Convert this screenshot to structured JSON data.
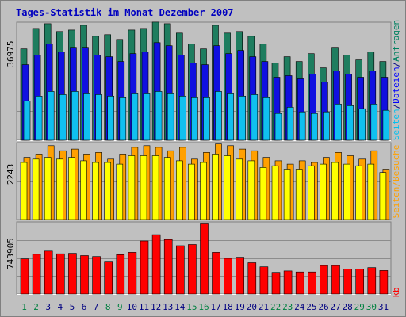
{
  "chart_data": {
    "type": "bar",
    "title": "Tages-Statistik im Monat Dezember 2007",
    "categories": [
      "1",
      "2",
      "3",
      "4",
      "5",
      "6",
      "7",
      "8",
      "9",
      "10",
      "11",
      "12",
      "13",
      "14",
      "15",
      "16",
      "17",
      "18",
      "19",
      "20",
      "21",
      "22",
      "23",
      "24",
      "25",
      "26",
      "27",
      "28",
      "29",
      "30",
      "31"
    ],
    "weekend_days": [
      "1",
      "2",
      "8",
      "9",
      "15",
      "16",
      "22",
      "23",
      "29",
      "30"
    ],
    "panels": [
      {
        "id": "requests",
        "ymax_label": "36975",
        "ymax": 36975,
        "grid": true,
        "series": [
          {
            "name": "Anfragen",
            "color": "#1e7d5f",
            "values": [
              29000,
              35500,
              37000,
              34500,
              35000,
              36500,
              33000,
              33500,
              32000,
              35000,
              35500,
              37500,
              37000,
              34000,
              30500,
              29000,
              36500,
              34000,
              34500,
              33000,
              30500,
              24500,
              26500,
              25000,
              27500,
              23000,
              29500,
              27000,
              25500,
              28000,
              25000
            ]
          },
          {
            "name": "Dateien",
            "color": "#1010e0",
            "values": [
              24000,
              27000,
              30500,
              28000,
              29500,
              29500,
              27000,
              26500,
              25000,
              27500,
              28000,
              31000,
              30000,
              27000,
              24500,
              24000,
              30000,
              27500,
              28500,
              26500,
              25000,
              20000,
              20500,
              19500,
              21000,
              18500,
              22000,
              21000,
              20000,
              22000,
              20000
            ]
          },
          {
            "name": "Seiten",
            "color": "#10c0f0",
            "values": [
              12500,
              14000,
              15500,
              14500,
              15500,
              15000,
              14500,
              14000,
              13500,
              15000,
              15000,
              15500,
              15000,
              14000,
              13500,
              13500,
              15500,
              15000,
              14000,
              14500,
              13500,
              8500,
              10500,
              9000,
              8500,
              9000,
              11500,
              11000,
              10000,
              11500,
              9500
            ]
          }
        ]
      },
      {
        "id": "visits",
        "ymax_label": "2243",
        "ymax": 2243,
        "grid": true,
        "series": [
          {
            "name": "Besuche",
            "color": "#ffa000",
            "values": [
              1850,
              1950,
              2200,
              2050,
              2100,
              1950,
              2000,
              1800,
              1950,
              2150,
              2200,
              2150,
              2050,
              2150,
              1800,
              2000,
              2250,
              2200,
              2100,
              2050,
              1850,
              1750,
              1650,
              1750,
              1700,
              1850,
              2000,
              1900,
              1800,
              2050,
              1500
            ]
          },
          {
            "name": "Seiten",
            "color": "#ffff00",
            "values": [
              1700,
              1800,
              1850,
              1800,
              1850,
              1750,
              1700,
              1700,
              1650,
              1900,
              1900,
              1900,
              1850,
              1750,
              1650,
              1700,
              1950,
              1900,
              1800,
              1750,
              1550,
              1600,
              1500,
              1500,
              1600,
              1650,
              1700,
              1650,
              1600,
              1650,
              1400
            ]
          }
        ]
      },
      {
        "id": "traffic",
        "ymax_label": "743905",
        "ymax": 743905,
        "grid": true,
        "series": [
          {
            "name": "kb",
            "color": "#ff0000",
            "values": [
              370000,
              420000,
              453000,
              425000,
              430000,
              405000,
              395000,
              345000,
              415000,
              440000,
              560000,
              626000,
              575000,
              510000,
              522000,
              740000,
              440000,
              376000,
              388000,
              330000,
              287000,
              228000,
              243000,
              232000,
              232000,
              300000,
              300000,
              264000,
              264000,
              278000,
              247000
            ]
          }
        ]
      }
    ]
  },
  "legend": {
    "requests": [
      "Seiten",
      "/",
      "Dateien",
      "/",
      "Anfragen"
    ],
    "requests_colors": [
      "#00c0f0",
      "#000080",
      "#0000ff",
      "#000080",
      "#008060"
    ],
    "visits": [
      "Seiten",
      "/",
      "Besuche"
    ],
    "visits_colors": [
      "#ffa000",
      "#ffa000",
      "#ffa000"
    ],
    "traffic": [
      "kb"
    ],
    "traffic_colors": [
      "#ff0000"
    ]
  },
  "colors": {
    "title": "#0000c0",
    "weekday_label": "#000080",
    "weekend_label": "#008040",
    "background": "#c0c0c0",
    "bar_outline": "#000000"
  }
}
